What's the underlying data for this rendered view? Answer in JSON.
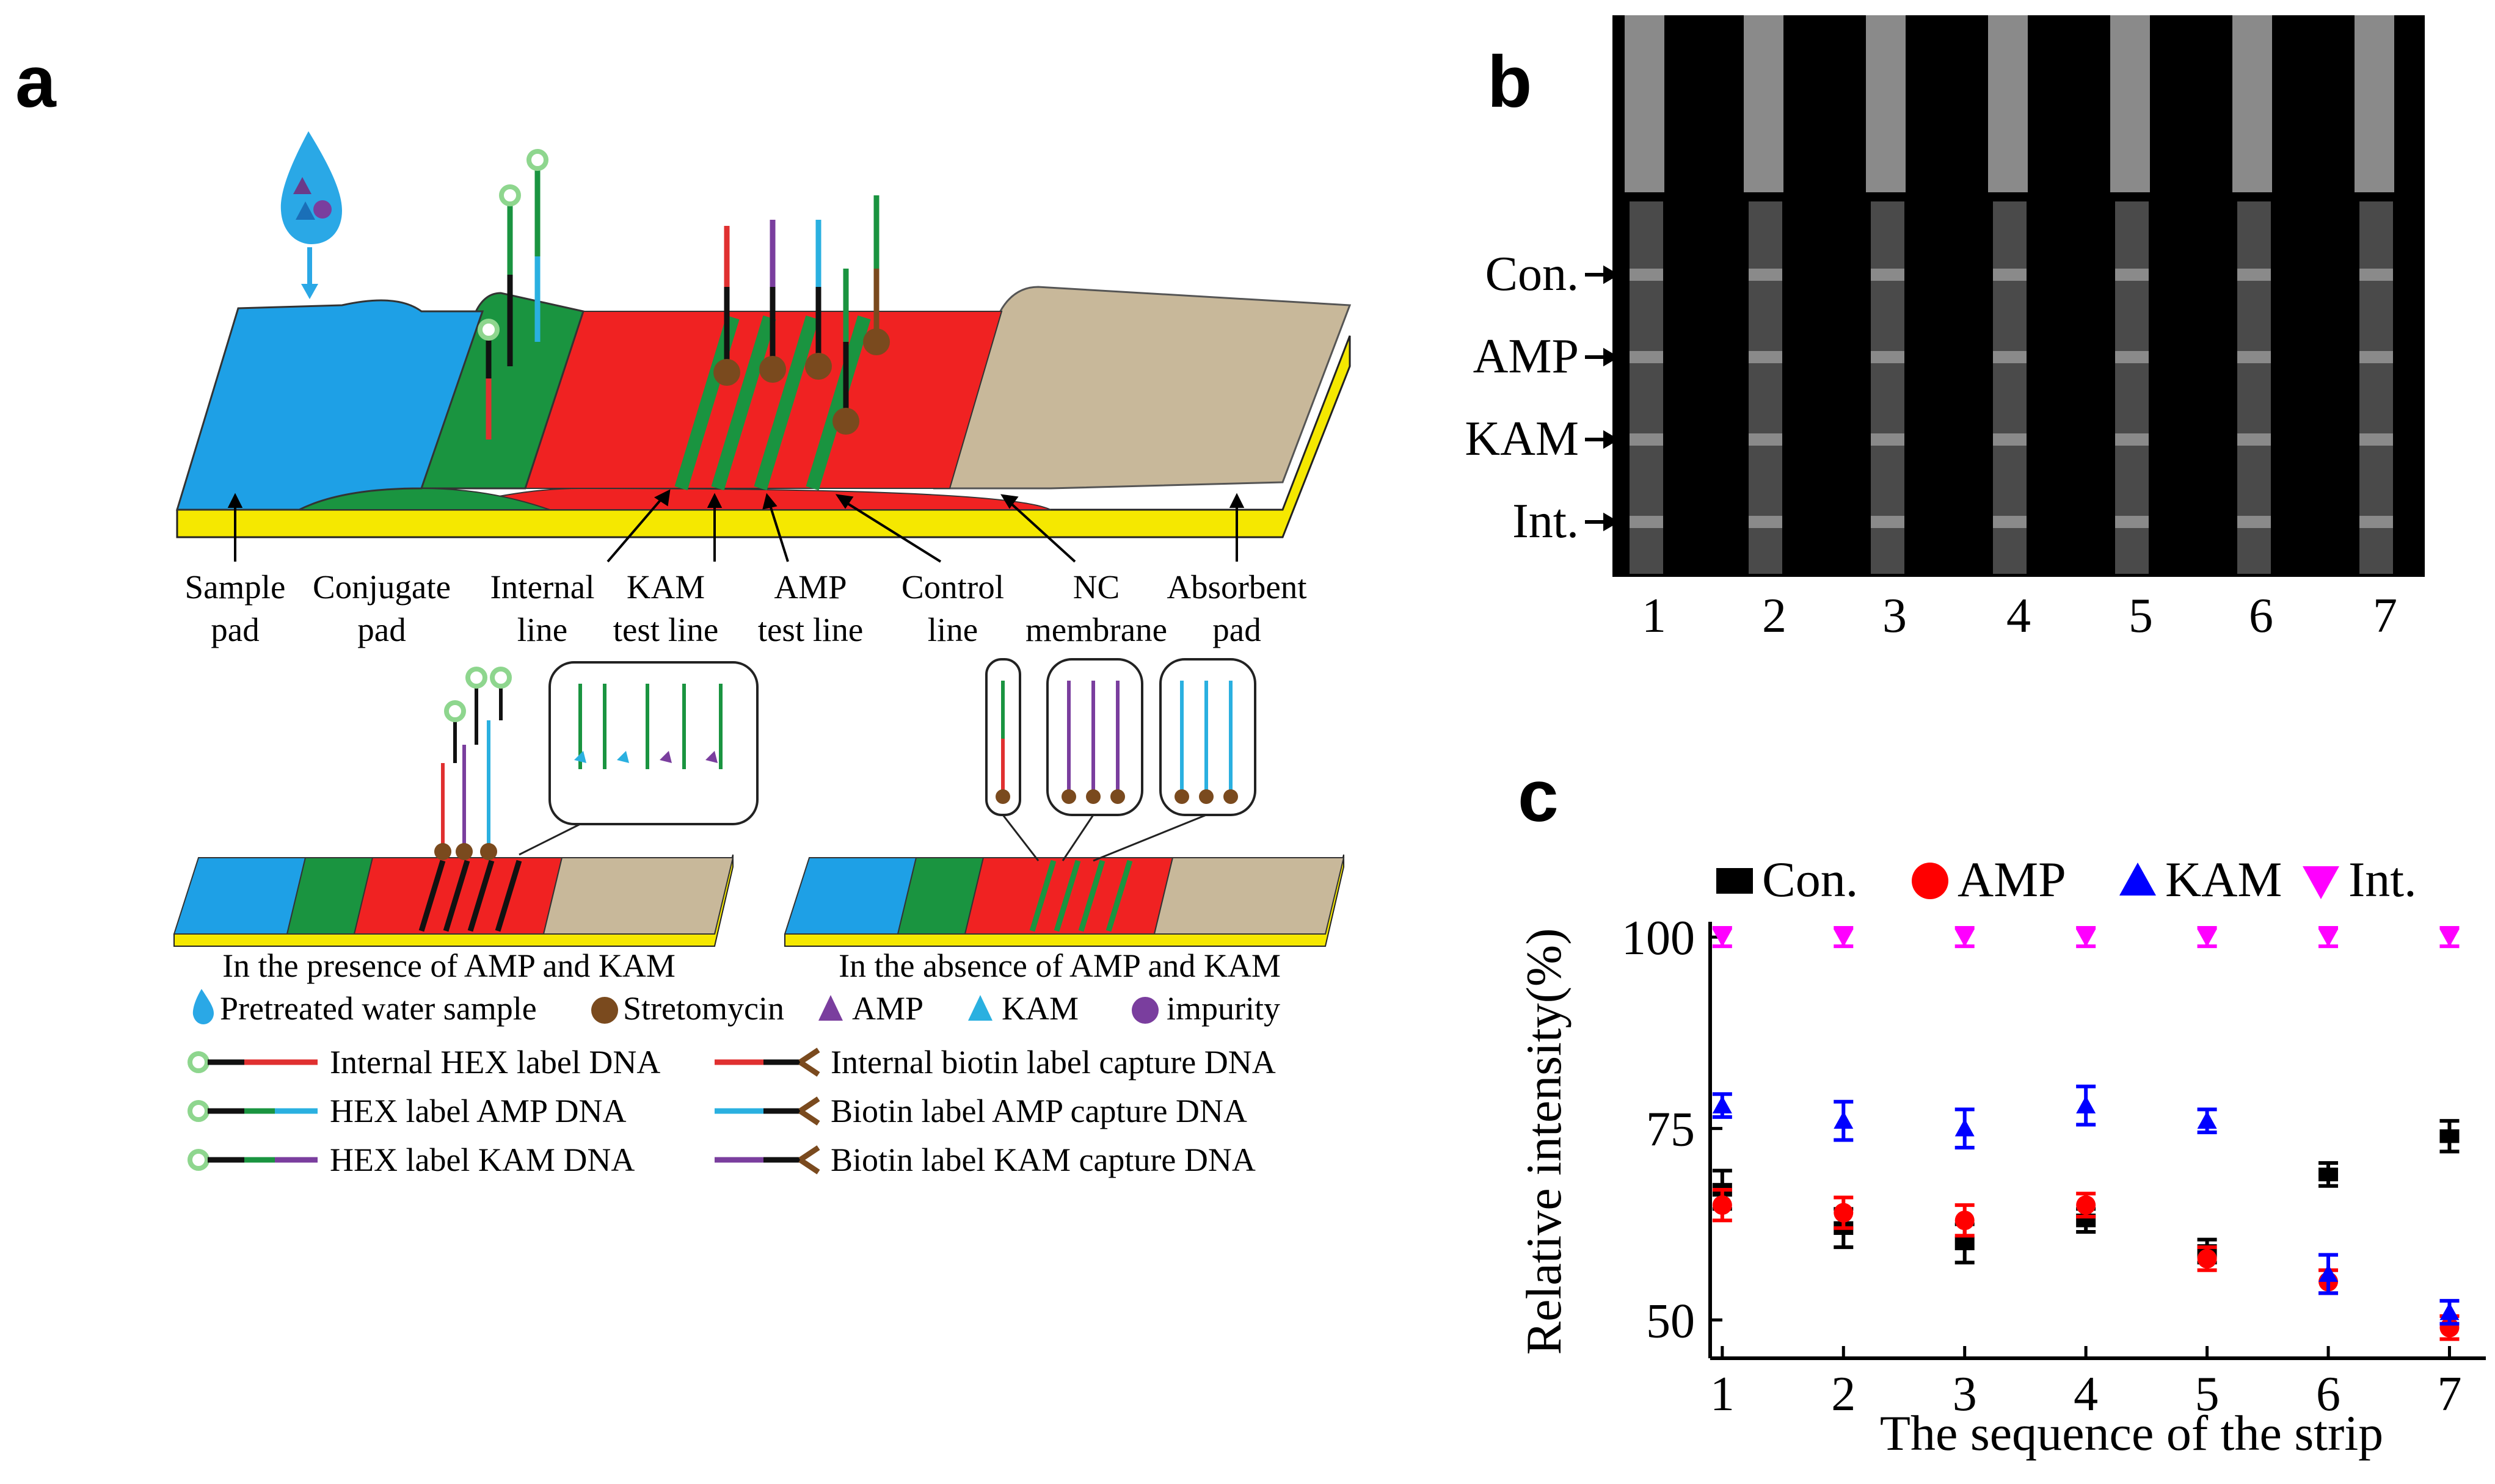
{
  "panel_a": {
    "panel_label": "a",
    "strip_labels": [
      {
        "line1": "Sample",
        "line2": "pad"
      },
      {
        "line1": "Conjugate",
        "line2": "pad"
      },
      {
        "line1": "Internal",
        "line2": "line"
      },
      {
        "line1": "KAM",
        "line2": "test line"
      },
      {
        "line1": "AMP",
        "line2": "test line"
      },
      {
        "line1": "Control",
        "line2": "line"
      },
      {
        "line1": "NC",
        "line2": "membrane"
      },
      {
        "line1": "Absorbent",
        "line2": "pad"
      }
    ],
    "presence_caption": "In the presence of AMP and KAM",
    "absence_caption": "In the absence of AMP and KAM",
    "legend": {
      "water_sample": "Pretreated water sample",
      "streptomycin": "Stretomycin",
      "amp": "AMP",
      "kam": "KAM",
      "impurity": "impurity",
      "internal_hex": "Internal HEX label DNA",
      "hex_amp": "HEX label AMP DNA",
      "hex_kam": "HEX label KAM DNA",
      "internal_biotin": "Internal biotin label capture DNA",
      "biotin_amp": "Biotin label AMP capture DNA",
      "biotin_kam": "Biotin label KAM capture DNA"
    },
    "colors": {
      "sample_pad": "#1ea0e6",
      "conjugate_pad": "#1a9440",
      "nc_membrane": "#f02222",
      "absorbent_pad": "#c8b89a",
      "backing": "#f5e800",
      "amp": "#7a3e9e",
      "kam": "#2ab0e0",
      "streptomycin": "#7a4a1e",
      "hex": "#8ed68e"
    }
  },
  "panel_b": {
    "panel_label": "b",
    "row_labels": [
      "Con.",
      "AMP",
      "KAM",
      "Int."
    ],
    "strip_numbers": [
      "1",
      "2",
      "3",
      "4",
      "5",
      "6",
      "7"
    ]
  },
  "chart_data": {
    "type": "scatter",
    "panel_label": "c",
    "title": "",
    "xlabel": "The sequence of the strip",
    "ylabel": "Relative intensity(%)",
    "x": [
      1,
      2,
      3,
      4,
      5,
      6,
      7
    ],
    "x_tick_labels": [
      "1",
      "2",
      "3",
      "4",
      "5",
      "6",
      "7"
    ],
    "y_tick_labels": [
      "50",
      "75",
      "100"
    ],
    "y_ticks": [
      50,
      75,
      100
    ],
    "ylim": [
      45,
      102
    ],
    "xlim": [
      0.9,
      7.3
    ],
    "legend_placement": "top",
    "series": [
      {
        "name": "Con.",
        "color": "#000000",
        "marker": "square",
        "values": [
          67,
          62,
          60,
          63,
          59,
          69,
          74
        ],
        "errors": [
          2.5,
          2.5,
          2.5,
          1.5,
          1.5,
          1.5,
          2
        ]
      },
      {
        "name": "AMP",
        "color": "#ff0000",
        "marker": "circle",
        "values": [
          65,
          64,
          63,
          65,
          58,
          55,
          49
        ],
        "errors": [
          2,
          2,
          2,
          1.5,
          1.5,
          1.5,
          1.5
        ]
      },
      {
        "name": "KAM",
        "color": "#0000ff",
        "marker": "triangle-up",
        "values": [
          78,
          76,
          75,
          78,
          76,
          56,
          51
        ],
        "errors": [
          1.5,
          2.5,
          2.5,
          2.5,
          1.5,
          2.5,
          1.5
        ]
      },
      {
        "name": "Int.",
        "color": "#ff00ff",
        "marker": "triangle-down",
        "values": [
          100,
          100,
          100,
          100,
          100,
          100,
          100
        ],
        "errors": [
          1.2,
          1.2,
          1.2,
          1.2,
          1.2,
          1.2,
          1.2
        ]
      }
    ]
  }
}
